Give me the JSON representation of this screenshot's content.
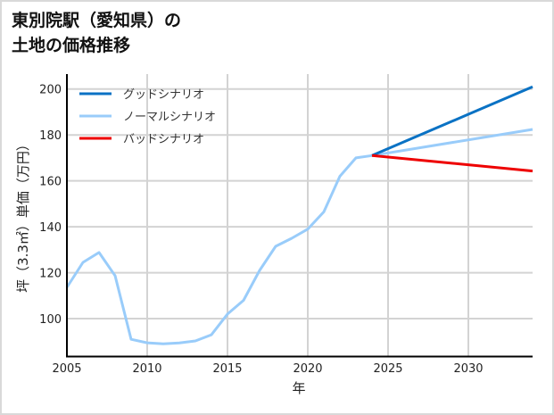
{
  "title": {
    "line1": "東別院駅（愛知県）の",
    "line2": "土地の価格推移"
  },
  "colors": {
    "good": "#0a72c4",
    "normal": "#99ccfa",
    "bad": "#ee0000",
    "grid": "#d3d3d3",
    "axis": "#000000",
    "border": "#d9d9d9"
  },
  "chart_data": {
    "type": "line",
    "title": "東別院駅（愛知県）の土地の価格推移",
    "xlabel": "年",
    "ylabel": "坪（3.3㎡）単価（万円）",
    "xlim": [
      2005,
      2034
    ],
    "ylim": [
      83.5,
      206.5
    ],
    "xticks": [
      2005,
      2010,
      2015,
      2020,
      2025,
      2030
    ],
    "yticks": [
      100,
      120,
      140,
      160,
      180,
      200
    ],
    "grid": true,
    "legend_position": "upper left",
    "series": [
      {
        "name": "グッドシナリオ",
        "color": "#0a72c4",
        "x": [
          2024,
          2034
        ],
        "y": [
          171,
          201
        ]
      },
      {
        "name": "ノーマルシナリオ",
        "color": "#99ccfa",
        "x": [
          2005,
          2006,
          2007,
          2008,
          2009,
          2010,
          2011,
          2012,
          2013,
          2014,
          2015,
          2016,
          2017,
          2018,
          2019,
          2020,
          2021,
          2022,
          2023,
          2024,
          2034
        ],
        "y": [
          113.6,
          124.5,
          128.8,
          118.7,
          91,
          89.5,
          89,
          89.4,
          90.3,
          93,
          102,
          108,
          121,
          131.5,
          135,
          139,
          146.5,
          162,
          170,
          171,
          182.4
        ]
      },
      {
        "name": "バッドシナリオ",
        "color": "#ee0000",
        "x": [
          2024,
          2034
        ],
        "y": [
          171,
          164.3
        ]
      }
    ]
  }
}
